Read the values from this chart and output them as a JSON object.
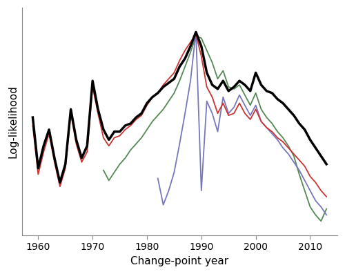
{
  "title": "",
  "xlabel": "Change-point year",
  "ylabel": "Log-likelihood",
  "background_color": "#ffffff",
  "black_line": {
    "color": "#000000",
    "lw": 2.5,
    "years": [
      1959,
      1960,
      1961,
      1962,
      1963,
      1964,
      1965,
      1966,
      1967,
      1968,
      1969,
      1970,
      1971,
      1972,
      1973,
      1974,
      1975,
      1976,
      1977,
      1978,
      1979,
      1980,
      1981,
      1982,
      1983,
      1984,
      1985,
      1986,
      1987,
      1988,
      1989,
      1990,
      1991,
      1992,
      1993,
      1994,
      1995,
      1996,
      1997,
      1998,
      1999,
      2000,
      2001,
      2002,
      2003,
      2004,
      2005,
      2006,
      2007,
      2008,
      2009,
      2010,
      2011,
      2012,
      2013
    ],
    "values": [
      0.58,
      0.33,
      0.44,
      0.52,
      0.38,
      0.26,
      0.35,
      0.62,
      0.47,
      0.38,
      0.44,
      0.76,
      0.62,
      0.52,
      0.47,
      0.51,
      0.51,
      0.54,
      0.55,
      0.58,
      0.6,
      0.65,
      0.68,
      0.7,
      0.73,
      0.75,
      0.77,
      0.83,
      0.87,
      0.93,
      1.0,
      0.93,
      0.8,
      0.74,
      0.72,
      0.76,
      0.71,
      0.73,
      0.76,
      0.74,
      0.71,
      0.8,
      0.74,
      0.71,
      0.7,
      0.67,
      0.65,
      0.62,
      0.59,
      0.55,
      0.52,
      0.47,
      0.43,
      0.39,
      0.35
    ]
  },
  "red_line": {
    "color": "#cc3333",
    "lw": 1.3,
    "years": [
      1959,
      1960,
      1961,
      1962,
      1963,
      1964,
      1965,
      1966,
      1967,
      1968,
      1969,
      1970,
      1971,
      1972,
      1973,
      1974,
      1975,
      1976,
      1977,
      1978,
      1979,
      1980,
      1981,
      1982,
      1983,
      1984,
      1985,
      1986,
      1987,
      1988,
      1989,
      1990,
      1991,
      1992,
      1993,
      1994,
      1995,
      1996,
      1997,
      1998,
      1999,
      2000,
      2001,
      2002,
      2003,
      2004,
      2005,
      2006,
      2007,
      2008,
      2009,
      2010,
      2011,
      2012,
      2013
    ],
    "values": [
      0.54,
      0.3,
      0.41,
      0.5,
      0.36,
      0.24,
      0.33,
      0.6,
      0.45,
      0.36,
      0.41,
      0.73,
      0.6,
      0.48,
      0.44,
      0.48,
      0.49,
      0.52,
      0.54,
      0.57,
      0.59,
      0.64,
      0.68,
      0.7,
      0.74,
      0.77,
      0.8,
      0.86,
      0.91,
      0.95,
      0.99,
      0.88,
      0.73,
      0.68,
      0.6,
      0.65,
      0.59,
      0.6,
      0.65,
      0.6,
      0.57,
      0.62,
      0.56,
      0.53,
      0.51,
      0.48,
      0.46,
      0.43,
      0.4,
      0.37,
      0.34,
      0.29,
      0.26,
      0.22,
      0.19
    ]
  },
  "green_line": {
    "color": "#558855",
    "lw": 1.3,
    "years": [
      1972,
      1973,
      1974,
      1975,
      1976,
      1977,
      1978,
      1979,
      1980,
      1981,
      1982,
      1983,
      1984,
      1985,
      1986,
      1987,
      1988,
      1989,
      1990,
      1991,
      1992,
      1993,
      1994,
      1995,
      1996,
      1997,
      1998,
      1999,
      2000,
      2001,
      2002,
      2003,
      2004,
      2005,
      2006,
      2007,
      2008,
      2009,
      2010,
      2011,
      2012,
      2013
    ],
    "values": [
      0.32,
      0.27,
      0.31,
      0.35,
      0.38,
      0.42,
      0.45,
      0.48,
      0.52,
      0.56,
      0.59,
      0.62,
      0.66,
      0.7,
      0.76,
      0.83,
      0.9,
      0.98,
      0.97,
      0.91,
      0.85,
      0.77,
      0.81,
      0.73,
      0.72,
      0.74,
      0.69,
      0.64,
      0.7,
      0.62,
      0.58,
      0.55,
      0.51,
      0.48,
      0.44,
      0.39,
      0.3,
      0.22,
      0.14,
      0.1,
      0.07,
      0.13
    ]
  },
  "blue_line": {
    "color": "#7777bb",
    "lw": 1.3,
    "years": [
      1982,
      1983,
      1984,
      1985,
      1986,
      1987,
      1988,
      1989,
      1990,
      1991,
      1992,
      1993,
      1994,
      1995,
      1996,
      1997,
      1998,
      1999,
      2000,
      2001,
      2002,
      2003,
      2004,
      2005,
      2006,
      2007,
      2008,
      2009,
      2010,
      2011,
      2012,
      2013
    ],
    "values": [
      0.28,
      0.15,
      0.22,
      0.31,
      0.45,
      0.6,
      0.76,
      1.0,
      0.22,
      0.66,
      0.6,
      0.51,
      0.68,
      0.6,
      0.63,
      0.69,
      0.64,
      0.59,
      0.64,
      0.56,
      0.53,
      0.5,
      0.47,
      0.43,
      0.4,
      0.36,
      0.32,
      0.27,
      0.22,
      0.17,
      0.14,
      0.1
    ]
  }
}
